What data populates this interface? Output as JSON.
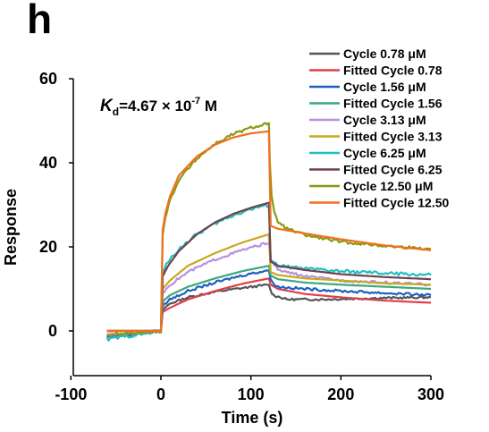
{
  "panel_letter": "h",
  "chart_data": {
    "type": "line",
    "xlabel": "Time (s)",
    "ylabel": "Response",
    "xlim": [
      -100,
      300
    ],
    "ylim": [
      -10,
      60
    ],
    "xticks": [
      -100,
      0,
      100,
      200,
      300
    ],
    "yticks": [
      0,
      20,
      40,
      60
    ],
    "tick_labels_x": [
      "-100",
      "0",
      "100",
      "200",
      "300"
    ],
    "tick_labels_y": [
      "0",
      "20",
      "40",
      "60"
    ],
    "grid": false,
    "legend_position": "top-right",
    "annotation": {
      "k": "K",
      "sub": "d",
      "text": "=4.67 × 10",
      "exp": "-7",
      "unit": " M"
    },
    "series": [
      {
        "name": "Cycle 0.78 μM",
        "color": "#555555",
        "jitter": 0.25,
        "x": [
          -60,
          -20,
          0,
          2,
          10,
          30,
          60,
          90,
          120,
          122,
          125,
          140,
          180,
          240,
          300
        ],
        "y": [
          -1,
          -0.5,
          0,
          5,
          6.5,
          8,
          9.3,
          10.2,
          11,
          9.5,
          8.5,
          7.5,
          7.5,
          7.8,
          8
        ]
      },
      {
        "name": "Fitted Cycle 0.78",
        "color": "#e0404a",
        "jitter": 0,
        "x": [
          -60,
          -20,
          0,
          2,
          10,
          30,
          60,
          90,
          120,
          122,
          130,
          160,
          200,
          250,
          300
        ],
        "y": [
          0,
          0,
          0,
          4.5,
          5.5,
          7.5,
          9.5,
          11.2,
          12.5,
          11,
          10,
          8.8,
          8,
          7.2,
          6.7
        ]
      },
      {
        "name": "Cycle 1.56 μM",
        "color": "#2060c0",
        "jitter": 0.3,
        "x": [
          -60,
          -20,
          0,
          2,
          10,
          30,
          60,
          90,
          120,
          122,
          130,
          160,
          200,
          250,
          300
        ],
        "y": [
          -1.5,
          -0.5,
          0,
          6,
          7.5,
          9.5,
          11.5,
          13.2,
          14.5,
          12,
          10.5,
          10,
          9.5,
          9,
          8.5
        ]
      },
      {
        "name": "Fitted Cycle 1.56",
        "color": "#3aa87a",
        "jitter": 0,
        "x": [
          -60,
          -20,
          0,
          2,
          10,
          30,
          60,
          90,
          120,
          122,
          130,
          160,
          200,
          250,
          300
        ],
        "y": [
          0,
          0,
          0,
          7,
          8.5,
          10.5,
          12.5,
          14.2,
          15.5,
          13.2,
          12.3,
          11.5,
          11,
          10.5,
          10
        ]
      },
      {
        "name": "Cycle 3.13 μM",
        "color": "#b890e0",
        "jitter": 0.3,
        "x": [
          -60,
          -20,
          0,
          2,
          10,
          30,
          60,
          90,
          120,
          122,
          130,
          160,
          200,
          250,
          300
        ],
        "y": [
          -1,
          -0.3,
          0,
          9,
          11,
          14,
          17,
          19.2,
          21,
          17,
          14.5,
          13,
          12,
          11.5,
          11
        ]
      },
      {
        "name": "Fitted Cycle 3.13",
        "color": "#c8a820",
        "jitter": 0,
        "x": [
          -60,
          -20,
          0,
          2,
          10,
          30,
          60,
          90,
          120,
          122,
          130,
          160,
          200,
          250,
          300
        ],
        "y": [
          0,
          0,
          0,
          10,
          12,
          15.5,
          18.5,
          21,
          23,
          14,
          13.3,
          12.5,
          12,
          11.3,
          11
        ]
      },
      {
        "name": "Cycle 6.25 μM",
        "color": "#20c0c0",
        "jitter": 0.4,
        "x": [
          -60,
          -20,
          0,
          2,
          8,
          20,
          40,
          60,
          80,
          100,
          120,
          122,
          130,
          160,
          200,
          250,
          300
        ],
        "y": [
          -2,
          -0.7,
          0,
          14,
          16.5,
          19.5,
          23,
          25.5,
          27.5,
          29,
          30,
          17,
          15.5,
          14.8,
          14.2,
          13.7,
          13.3
        ]
      },
      {
        "name": "Fitted Cycle 6.25",
        "color": "#704050",
        "jitter": 0,
        "x": [
          -60,
          -20,
          0,
          2,
          8,
          20,
          40,
          60,
          80,
          100,
          120,
          122,
          130,
          160,
          200,
          250,
          300
        ],
        "y": [
          0,
          0,
          0,
          13,
          15.5,
          19,
          23,
          25.8,
          27.8,
          29.3,
          30.5,
          16.5,
          15.5,
          14.5,
          13.5,
          12.8,
          12.3
        ]
      },
      {
        "name": "Cycle 12.50 μM",
        "color": "#8a9a10",
        "jitter": 0.35,
        "x": [
          -60,
          -20,
          0,
          2,
          5,
          10,
          20,
          40,
          60,
          80,
          100,
          120,
          121,
          123,
          126,
          130,
          140,
          160,
          200,
          250,
          300
        ],
        "y": [
          -1,
          -0.4,
          0,
          23,
          27,
          31,
          36,
          41,
          44.5,
          46.8,
          48.3,
          49.5,
          40,
          32,
          28,
          26,
          24.3,
          22.8,
          21.2,
          20.2,
          19.5
        ]
      },
      {
        "name": "Fitted Cycle 12.50",
        "color": "#f07020",
        "jitter": 0,
        "x": [
          -60,
          -20,
          0,
          2,
          5,
          10,
          20,
          40,
          60,
          80,
          100,
          120,
          122,
          130,
          160,
          200,
          250,
          300
        ],
        "y": [
          0,
          0,
          0,
          24,
          28,
          32,
          37,
          41.5,
          44.3,
          46,
          47,
          47.5,
          25,
          24.3,
          23.2,
          21.8,
          20.3,
          19.2
        ]
      }
    ]
  }
}
